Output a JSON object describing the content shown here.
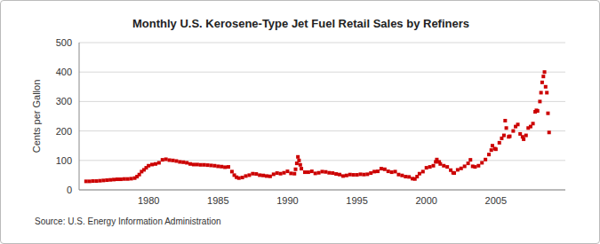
{
  "chart_data": {
    "type": "scatter",
    "title": "Monthly U.S. Kerosene-Type Jet Fuel Retail Sales by Refiners",
    "y_label": "Cents per Gallon",
    "source": "Source: U.S. Energy Information Administration",
    "color": "#cc0000",
    "marker": "square",
    "grid": true,
    "xlim": [
      1975,
      2010
    ],
    "xticks": [
      1980,
      1985,
      1990,
      1995,
      2000,
      2005
    ],
    "ylim": [
      0,
      500
    ],
    "yticks": [
      0,
      100,
      200,
      300,
      400,
      500
    ],
    "x": [
      1975.5,
      1975.75,
      1976,
      1976.25,
      1976.5,
      1976.75,
      1977,
      1977.25,
      1977.5,
      1977.75,
      1978,
      1978.25,
      1978.5,
      1978.75,
      1979,
      1979.17,
      1979.33,
      1979.5,
      1979.67,
      1979.83,
      1980,
      1980.25,
      1980.5,
      1980.75,
      1981,
      1981.25,
      1981.5,
      1981.75,
      1982,
      1982.25,
      1982.5,
      1982.75,
      1983,
      1983.25,
      1983.5,
      1983.75,
      1984,
      1984.25,
      1984.5,
      1984.75,
      1985,
      1985.25,
      1985.5,
      1985.75,
      1986,
      1986.17,
      1986.33,
      1986.5,
      1986.75,
      1987,
      1987.25,
      1987.5,
      1987.75,
      1988,
      1988.25,
      1988.5,
      1988.75,
      1989,
      1989.25,
      1989.5,
      1989.75,
      1990,
      1990.25,
      1990.5,
      1990.58,
      1990.67,
      1990.75,
      1990.83,
      1990.92,
      1991,
      1991.25,
      1991.5,
      1991.75,
      1992,
      1992.25,
      1992.5,
      1992.75,
      1993,
      1993.25,
      1993.5,
      1993.75,
      1994,
      1994.25,
      1994.5,
      1994.75,
      1995,
      1995.25,
      1995.5,
      1995.75,
      1996,
      1996.25,
      1996.5,
      1996.75,
      1997,
      1997.25,
      1997.5,
      1997.75,
      1998,
      1998.25,
      1998.5,
      1998.75,
      1999,
      1999.17,
      1999.33,
      1999.5,
      1999.75,
      2000,
      2000.25,
      2000.5,
      2000.67,
      2000.75,
      2000.92,
      2001,
      2001.25,
      2001.5,
      2001.75,
      2001.92,
      2002,
      2002.25,
      2002.5,
      2002.75,
      2003,
      2003.17,
      2003.33,
      2003.5,
      2003.75,
      2004,
      2004.25,
      2004.5,
      2004.67,
      2004.75,
      2004.92,
      2005,
      2005.25,
      2005.42,
      2005.58,
      2005.67,
      2005.75,
      2005.92,
      2006,
      2006.25,
      2006.42,
      2006.58,
      2006.75,
      2006.92,
      2007,
      2007.17,
      2007.33,
      2007.5,
      2007.67,
      2007.83,
      2007.92,
      2008,
      2008.17,
      2008.25,
      2008.33,
      2008.42,
      2008.5,
      2008.58,
      2008.67,
      2008.75,
      2008.83
    ],
    "values": [
      29,
      29,
      30,
      30,
      31,
      32,
      33,
      34,
      35,
      36,
      36,
      37,
      37,
      38,
      40,
      45,
      52,
      62,
      68,
      75,
      82,
      86,
      88,
      92,
      102,
      104,
      101,
      100,
      98,
      95,
      94,
      92,
      88,
      86,
      86,
      85,
      85,
      84,
      83,
      82,
      80,
      79,
      77,
      78,
      62,
      50,
      43,
      40,
      42,
      47,
      50,
      55,
      54,
      50,
      49,
      47,
      46,
      53,
      57,
      55,
      58,
      63,
      56,
      55,
      70,
      90,
      112,
      100,
      85,
      72,
      60,
      60,
      63,
      56,
      58,
      62,
      61,
      58,
      57,
      54,
      52,
      47,
      49,
      52,
      51,
      51,
      53,
      52,
      53,
      57,
      62,
      63,
      72,
      70,
      63,
      60,
      62,
      52,
      49,
      45,
      44,
      38,
      37,
      45,
      55,
      62,
      75,
      78,
      82,
      95,
      103,
      95,
      88,
      82,
      78,
      67,
      58,
      57,
      68,
      73,
      80,
      90,
      102,
      80,
      78,
      82,
      92,
      103,
      120,
      135,
      150,
      140,
      138,
      160,
      175,
      185,
      235,
      210,
      180,
      182,
      200,
      215,
      222,
      190,
      180,
      172,
      185,
      210,
      215,
      225,
      265,
      270,
      268,
      300,
      330,
      365,
      385,
      400,
      350,
      330,
      260,
      195
    ]
  }
}
